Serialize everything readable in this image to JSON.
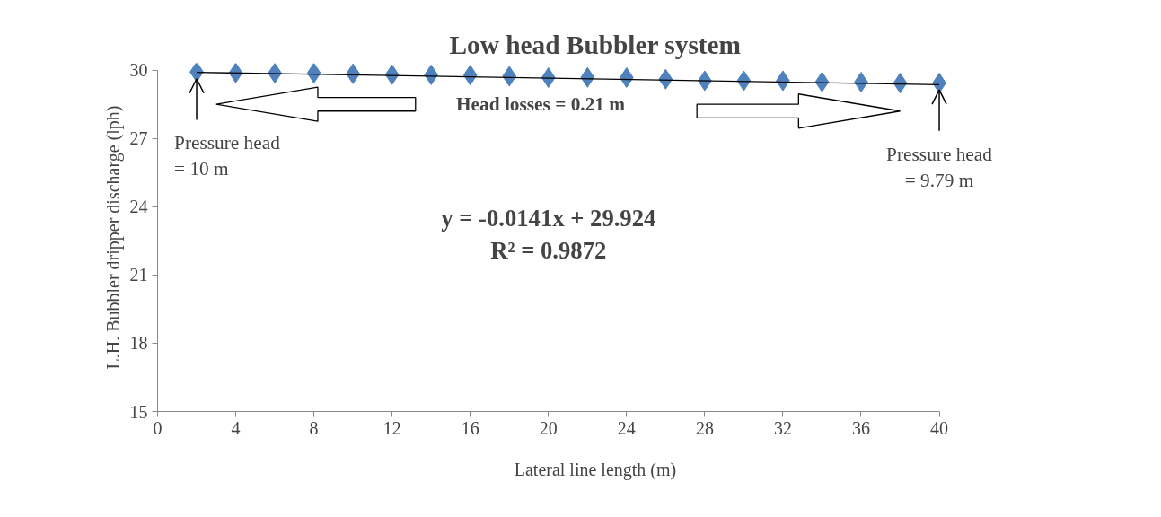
{
  "chart_data": {
    "type": "scatter",
    "title": "Low head Bubbler system",
    "xlabel": "Lateral line length (m)",
    "ylabel": "L.H. Bubbler dripper discharge (lph)",
    "x": [
      2,
      4,
      6,
      8,
      10,
      12,
      14,
      16,
      18,
      20,
      22,
      24,
      26,
      28,
      30,
      32,
      34,
      36,
      38,
      40
    ],
    "series": [
      {
        "color": "#4f81bd",
        "marker": "diamond",
        "values": [
          29.92,
          29.88,
          29.87,
          29.87,
          29.84,
          29.8,
          29.79,
          29.78,
          29.73,
          29.67,
          29.68,
          29.67,
          29.6,
          29.53,
          29.53,
          29.53,
          29.48,
          29.47,
          29.43,
          29.43
        ]
      },
      {
        "type": "line",
        "color": "#000000",
        "x": [
          2,
          40
        ],
        "values": [
          29.9,
          29.36
        ]
      }
    ],
    "xlim": [
      0,
      40
    ],
    "ylim": [
      15,
      30
    ],
    "xticks": [
      0,
      4,
      8,
      12,
      16,
      20,
      24,
      28,
      32,
      36,
      40
    ],
    "yticks": [
      15,
      18,
      21,
      24,
      27,
      30
    ],
    "grid": false,
    "annotations": [
      {
        "text": "Pressure head\n = 10 m",
        "x": 2,
        "y": 29.92
      },
      {
        "text": "Pressure head\n= 9.79 m",
        "x": 40,
        "y": 29.43
      },
      "Head losses = 0.21 m",
      "y = -0.0141x + 29.924\nR² = 0.9872"
    ]
  }
}
